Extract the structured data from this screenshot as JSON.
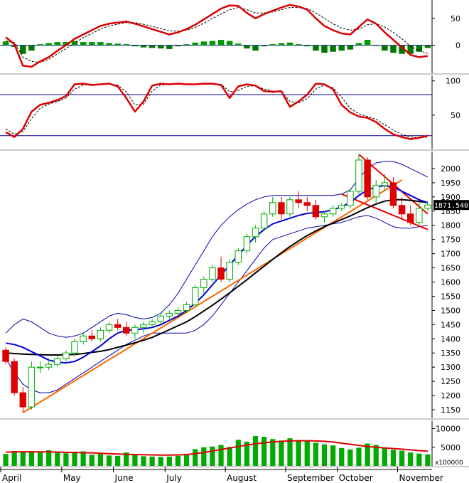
{
  "chart_data": [
    {
      "type": "line",
      "panel": "macd",
      "x_labels": [
        "April",
        "May",
        "June",
        "July",
        "August",
        "September",
        "October",
        "November"
      ],
      "yticks": [
        50,
        0
      ],
      "ylim": [
        -52,
        84
      ],
      "grid": false,
      "colors": {
        "main": "#dd0000",
        "signal": "#000000",
        "hist_pos": "#009900",
        "hist_neg": "#007700"
      },
      "series": [
        {
          "values": [
            15,
            2,
            -38,
            -40,
            -30,
            -22,
            -10,
            0,
            12,
            20,
            28,
            36,
            40,
            42,
            44,
            40,
            35,
            30,
            25,
            20,
            24,
            30,
            38,
            48,
            58,
            68,
            74,
            73,
            60,
            50,
            58,
            64,
            70,
            75,
            72,
            66,
            50,
            36,
            28,
            22,
            20,
            34,
            48,
            40,
            24,
            10,
            -4,
            -18,
            -22,
            -20
          ]
        },
        {
          "values": [
            8,
            5,
            -22,
            -30,
            -32,
            -26,
            -16,
            -6,
            4,
            14,
            22,
            30,
            36,
            39,
            42,
            42,
            39,
            35,
            31,
            27,
            26,
            28,
            33,
            41,
            50,
            58,
            66,
            70,
            66,
            60,
            60,
            62,
            66,
            70,
            70,
            68,
            60,
            50,
            40,
            32,
            28,
            30,
            38,
            40,
            34,
            24,
            12,
            -2,
            -10,
            -15
          ]
        },
        {
          "values": [
            7,
            -3,
            -16,
            -10,
            2,
            4,
            6,
            6,
            8,
            6,
            6,
            6,
            4,
            3,
            2,
            -2,
            -4,
            -5,
            -6,
            -7,
            -2,
            2,
            5,
            7,
            8,
            10,
            8,
            3,
            -6,
            -10,
            -2,
            2,
            4,
            5,
            2,
            -2,
            -10,
            -14,
            -12,
            -10,
            -8,
            4,
            10,
            0,
            -10,
            -14,
            -16,
            -16,
            -12,
            -5
          ]
        }
      ]
    },
    {
      "type": "line",
      "panel": "stochastic",
      "yticks": [
        100,
        50
      ],
      "ylim": [
        0,
        108
      ],
      "reference_levels": [
        80,
        20
      ],
      "colors": {
        "k": "#dd0000",
        "d": "#000000",
        "levels": "#000099"
      },
      "series": [
        {
          "values": [
            25,
            18,
            30,
            55,
            65,
            68,
            72,
            78,
            95,
            96,
            94,
            95,
            96,
            92,
            75,
            55,
            70,
            93,
            96,
            95,
            96,
            95,
            95,
            96,
            96,
            94,
            75,
            92,
            95,
            93,
            85,
            84,
            85,
            62,
            70,
            80,
            96,
            95,
            88,
            65,
            54,
            48,
            46,
            40,
            30,
            22,
            18,
            15,
            17,
            20
          ]
        },
        {
          "values": [
            30,
            22,
            26,
            45,
            60,
            66,
            70,
            75,
            88,
            94,
            95,
            95,
            95,
            94,
            84,
            65,
            66,
            85,
            94,
            95,
            95,
            95,
            95,
            95,
            95,
            95,
            84,
            86,
            92,
            93,
            88,
            85,
            84,
            70,
            68,
            74,
            88,
            94,
            90,
            76,
            60,
            52,
            48,
            44,
            36,
            28,
            22,
            18,
            17,
            18
          ]
        }
      ]
    },
    {
      "type": "candlestick",
      "panel": "price",
      "yticks": [
        2000,
        1950,
        1900,
        1850,
        1800,
        1750,
        1700,
        1650,
        1600,
        1550,
        1500,
        1450,
        1400,
        1350,
        1300,
        1250,
        1200,
        1150
      ],
      "ylim": [
        1120,
        2060
      ],
      "last_price_label": "1871.540",
      "colors": {
        "up": "#00aa00",
        "down": "#dd0000",
        "ma_short": "#0000dd",
        "ma_long": "#000000",
        "bands": "#0000aa",
        "trendlines": "#ee0000",
        "uptrend": "#ff6600"
      },
      "ohlc": [
        [
          1360,
          1370,
          1310,
          1320
        ],
        [
          1320,
          1330,
          1200,
          1210
        ],
        [
          1210,
          1230,
          1140,
          1160
        ],
        [
          1160,
          1320,
          1150,
          1300
        ],
        [
          1300,
          1320,
          1280,
          1300
        ],
        [
          1300,
          1330,
          1290,
          1310
        ],
        [
          1310,
          1340,
          1300,
          1330
        ],
        [
          1330,
          1360,
          1320,
          1350
        ],
        [
          1350,
          1400,
          1340,
          1390
        ],
        [
          1390,
          1420,
          1380,
          1410
        ],
        [
          1410,
          1430,
          1390,
          1400
        ],
        [
          1400,
          1440,
          1390,
          1430
        ],
        [
          1430,
          1460,
          1420,
          1450
        ],
        [
          1450,
          1470,
          1430,
          1440
        ],
        [
          1440,
          1460,
          1410,
          1420
        ],
        [
          1420,
          1450,
          1400,
          1440
        ],
        [
          1440,
          1460,
          1420,
          1450
        ],
        [
          1450,
          1470,
          1440,
          1460
        ],
        [
          1460,
          1490,
          1450,
          1480
        ],
        [
          1480,
          1500,
          1470,
          1490
        ],
        [
          1490,
          1510,
          1480,
          1500
        ],
        [
          1500,
          1530,
          1490,
          1520
        ],
        [
          1520,
          1590,
          1510,
          1580
        ],
        [
          1580,
          1620,
          1560,
          1610
        ],
        [
          1610,
          1660,
          1600,
          1650
        ],
        [
          1650,
          1690,
          1600,
          1610
        ],
        [
          1610,
          1680,
          1600,
          1670
        ],
        [
          1670,
          1720,
          1660,
          1710
        ],
        [
          1710,
          1770,
          1700,
          1760
        ],
        [
          1760,
          1800,
          1740,
          1790
        ],
        [
          1790,
          1850,
          1780,
          1840
        ],
        [
          1840,
          1900,
          1830,
          1880
        ],
        [
          1880,
          1900,
          1820,
          1840
        ],
        [
          1840,
          1900,
          1830,
          1890
        ],
        [
          1890,
          1920,
          1860,
          1880
        ],
        [
          1880,
          1900,
          1850,
          1870
        ],
        [
          1870,
          1890,
          1820,
          1830
        ],
        [
          1830,
          1850,
          1810,
          1840
        ],
        [
          1840,
          1870,
          1830,
          1860
        ],
        [
          1860,
          1880,
          1850,
          1870
        ],
        [
          1870,
          1930,
          1860,
          1920
        ],
        [
          1920,
          2050,
          1910,
          2030
        ],
        [
          2030,
          2040,
          1890,
          1900
        ],
        [
          1900,
          1960,
          1880,
          1940
        ],
        [
          1940,
          1980,
          1920,
          1950
        ],
        [
          1950,
          1970,
          1860,
          1870
        ],
        [
          1870,
          1900,
          1820,
          1840
        ],
        [
          1840,
          1870,
          1800,
          1810
        ],
        [
          1810,
          1880,
          1800,
          1860
        ],
        [
          1860,
          1880,
          1850,
          1871.54
        ]
      ],
      "ma_short": [
        1385,
        1380,
        1370,
        1355,
        1340,
        1325,
        1318,
        1315,
        1320,
        1335,
        1355,
        1375,
        1400,
        1420,
        1430,
        1432,
        1435,
        1440,
        1450,
        1465,
        1480,
        1500,
        1525,
        1555,
        1590,
        1625,
        1660,
        1695,
        1730,
        1760,
        1785,
        1805,
        1815,
        1825,
        1835,
        1842,
        1845,
        1848,
        1855,
        1865,
        1880,
        1905,
        1925,
        1935,
        1940,
        1935,
        1920,
        1905,
        1890,
        1880
      ],
      "ma_long": [
        1350,
        1348,
        1346,
        1345,
        1344,
        1343,
        1343,
        1344,
        1345,
        1348,
        1352,
        1356,
        1362,
        1370,
        1378,
        1386,
        1395,
        1405,
        1418,
        1432,
        1446,
        1460,
        1478,
        1498,
        1518,
        1540,
        1562,
        1585,
        1608,
        1632,
        1656,
        1680,
        1703,
        1725,
        1745,
        1764,
        1780,
        1795,
        1808,
        1820,
        1833,
        1848,
        1862,
        1875,
        1885,
        1890,
        1890,
        1888,
        1884,
        1880
      ],
      "band_upper": [
        1420,
        1450,
        1470,
        1460,
        1440,
        1420,
        1410,
        1405,
        1410,
        1420,
        1440,
        1460,
        1480,
        1490,
        1485,
        1475,
        1470,
        1475,
        1490,
        1520,
        1560,
        1610,
        1660,
        1710,
        1760,
        1800,
        1830,
        1855,
        1875,
        1890,
        1900,
        1905,
        1905,
        1905,
        1905,
        1905,
        1905,
        1905,
        1905,
        1910,
        1925,
        1965,
        2000,
        2020,
        2025,
        2025,
        2015,
        2000,
        1985,
        1970
      ],
      "band_lower": [
        1330,
        1280,
        1240,
        1220,
        1210,
        1210,
        1220,
        1240,
        1260,
        1280,
        1300,
        1320,
        1340,
        1360,
        1380,
        1395,
        1410,
        1420,
        1420,
        1420,
        1420,
        1420,
        1430,
        1450,
        1480,
        1520,
        1560,
        1600,
        1640,
        1680,
        1720,
        1750,
        1760,
        1770,
        1780,
        1790,
        1795,
        1800,
        1805,
        1810,
        1820,
        1830,
        1835,
        1825,
        1810,
        1795,
        1790,
        1790,
        1795,
        1800
      ],
      "trendlines": [
        {
          "name": "uptrend",
          "from": [
            2,
            1140
          ],
          "to": [
            46,
            1960
          ]
        },
        {
          "name": "upper-downtrend",
          "from": [
            41,
            2050
          ],
          "to": [
            49,
            1840
          ]
        },
        {
          "name": "lower-downtrend",
          "from": [
            39,
            1910
          ],
          "to": [
            49,
            1785
          ]
        }
      ]
    },
    {
      "type": "bar",
      "panel": "volume",
      "yticks": [
        10000,
        5000
      ],
      "ylim": [
        0,
        12200
      ],
      "unit_label": "x100000",
      "colors": {
        "bars": "#00aa00",
        "ma": "#dd0000"
      },
      "values": [
        3200,
        4000,
        3800,
        3900,
        3600,
        4200,
        3500,
        3400,
        3800,
        3900,
        3000,
        3200,
        2800,
        2700,
        3600,
        2900,
        2600,
        2500,
        2400,
        2500,
        2700,
        3000,
        4500,
        5000,
        5200,
        5600,
        5100,
        7000,
        6500,
        8000,
        7800,
        7200,
        6800,
        7400,
        6900,
        6600,
        6200,
        5800,
        5500,
        4800,
        4400,
        4900,
        6000,
        5600,
        4700,
        4300,
        4100,
        3600,
        3300,
        3100
      ],
      "ma": [
        3700,
        3750,
        3800,
        3800,
        3780,
        3760,
        3700,
        3650,
        3600,
        3550,
        3500,
        3400,
        3300,
        3200,
        3100,
        3050,
        3000,
        2950,
        2900,
        2900,
        2950,
        3050,
        3300,
        3600,
        4000,
        4400,
        4800,
        5200,
        5600,
        5900,
        6200,
        6400,
        6600,
        6700,
        6750,
        6750,
        6700,
        6600,
        6400,
        6100,
        5800,
        5500,
        5200,
        5000,
        4800,
        4650,
        4500,
        4300,
        4100,
        3950
      ]
    }
  ]
}
